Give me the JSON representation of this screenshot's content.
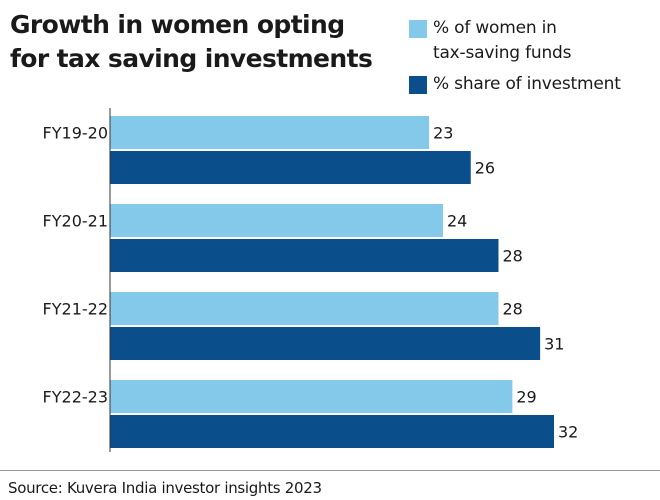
{
  "title_lines": [
    "Growth in women opting",
    "for tax saving investments"
  ],
  "source": "Source: Kuvera India investor insights 2023",
  "colors": {
    "light": "#85c9ea",
    "dark": "#0a4f8b",
    "text": "#1a1a1a",
    "axis": "#333333"
  },
  "legend": [
    {
      "lines": [
        "% of women in",
        "tax-saving funds"
      ],
      "color": "#85c9ea"
    },
    {
      "lines": [
        "% share of investment"
      ],
      "color": "#0a4f8b"
    }
  ],
  "chart_data": {
    "type": "bar",
    "orientation": "horizontal",
    "categories": [
      "FY19-20",
      "FY20-21",
      "FY21-22",
      "FY22-23"
    ],
    "series": [
      {
        "name": "% of women in tax-saving funds",
        "values": [
          23,
          24,
          28,
          29
        ]
      },
      {
        "name": "% share of investment",
        "values": [
          26,
          28,
          31,
          32
        ]
      }
    ],
    "xlim": [
      0,
      32
    ],
    "grid": false,
    "legend_position": "top-right"
  }
}
